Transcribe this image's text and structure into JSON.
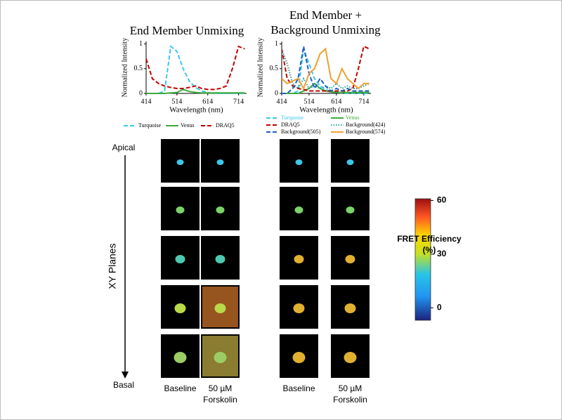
{
  "chart_data": [
    {
      "type": "line",
      "title": "End Member Unmixing",
      "x_label": "Wavelength (nm)",
      "y_label": "Normalized Intensity",
      "x": [
        414,
        434,
        454,
        474,
        494,
        514,
        534,
        554,
        574,
        594,
        614,
        634,
        654,
        674,
        694,
        714,
        734
      ],
      "xlim": [
        414,
        740
      ],
      "xticks": [
        414,
        514,
        614,
        714
      ],
      "ylim": [
        0,
        1.05
      ],
      "yticks": [
        0,
        0.5,
        1
      ],
      "series": [
        {
          "name": "Turquoise",
          "color": "#3ec6e8",
          "style": "dashed",
          "values": [
            0,
            0,
            0,
            0.05,
            0.95,
            0.85,
            0.5,
            0.25,
            0.12,
            0.05,
            0.02,
            0,
            0,
            0,
            0,
            0,
            0
          ]
        },
        {
          "name": "Venus",
          "color": "#3cab3c",
          "style": "solid",
          "values": [
            0,
            0,
            0,
            0,
            0.01,
            0.02,
            0.08,
            0.04,
            0.02,
            0.01,
            0.01,
            0.01,
            0.01,
            0.01,
            0.01,
            0.01,
            0.01
          ]
        },
        {
          "name": "DRAQ5",
          "color": "#c00000",
          "style": "dashed",
          "values": [
            0.7,
            0.3,
            0.2,
            0.15,
            0.12,
            0.1,
            0.1,
            0.12,
            0.15,
            0.1,
            0.08,
            0.08,
            0.1,
            0.15,
            0.5,
            0.95,
            0.9
          ]
        }
      ]
    },
    {
      "type": "line",
      "title": "End Member + Background Unmixing",
      "x_label": "Wavelength (nm)",
      "y_label": "Normalized Intensity",
      "x": [
        414,
        434,
        454,
        474,
        494,
        514,
        534,
        554,
        574,
        594,
        614,
        634,
        654,
        674,
        694,
        714,
        734
      ],
      "xlim": [
        414,
        740
      ],
      "xticks": [
        414,
        514,
        614,
        714
      ],
      "ylim": [
        0,
        1.05
      ],
      "yticks": [
        0,
        0.5,
        1
      ],
      "series": [
        {
          "name": "Turquoise",
          "color": "#3ec6e8",
          "style": "dashed",
          "values": [
            0,
            0,
            0,
            0.05,
            0.9,
            0.6,
            0.3,
            0.15,
            0.08,
            0.04,
            0.02,
            0.01,
            0,
            0,
            0,
            0,
            0
          ]
        },
        {
          "name": "Venus",
          "color": "#3cab3c",
          "style": "solid",
          "values": [
            0,
            0,
            0,
            0,
            0.05,
            0.1,
            0.2,
            0.1,
            0.05,
            0.03,
            0.02,
            0.02,
            0.02,
            0.02,
            0.02,
            0.02,
            0.02
          ]
        },
        {
          "name": "DRAQ5",
          "color": "#c00000",
          "style": "dashed",
          "values": [
            0.9,
            0.3,
            0.15,
            0.1,
            0.08,
            0.05,
            0.05,
            0.05,
            0.05,
            0.05,
            0.05,
            0.05,
            0.05,
            0.1,
            0.5,
            0.95,
            0.9
          ]
        },
        {
          "name": "Background(424)",
          "color": "#2aa198",
          "style": "dotted",
          "values": [
            0.9,
            0.6,
            0.2,
            0.1,
            0.3,
            0.1,
            0.15,
            0.1,
            0.15,
            0.1,
            0.2,
            0.1,
            0.15,
            0.1,
            0.1,
            0.15,
            0.2
          ]
        },
        {
          "name": "Background(505)",
          "color": "#1f5fbf",
          "style": "dashed",
          "values": [
            0,
            0,
            0.1,
            0.3,
            0.95,
            0.4,
            0.1,
            0.3,
            0.15,
            0.05,
            0.1,
            0.05,
            0.1,
            0.05,
            0.05,
            0.05,
            0.05
          ]
        },
        {
          "name": "Background(574)",
          "color": "#f0a030",
          "style": "solid",
          "values": [
            0.3,
            0.2,
            0.25,
            0.3,
            0.1,
            0.4,
            0.5,
            0.8,
            0.9,
            0.3,
            0.2,
            0.5,
            0.3,
            0.2,
            0.1,
            0.2,
            0.2
          ]
        }
      ]
    }
  ],
  "image_panel": {
    "top_label": "Apical",
    "bottom_label": "Basal",
    "axis_label": "XY Planes",
    "columns": [
      "Baseline",
      "50 µM Forskolin",
      "Baseline",
      "50 µM Forskolin"
    ]
  },
  "colorbar": {
    "title": "FRET Efficiency (%)",
    "lim": [
      -7,
      61
    ],
    "ticks": [
      0,
      30,
      60
    ]
  }
}
